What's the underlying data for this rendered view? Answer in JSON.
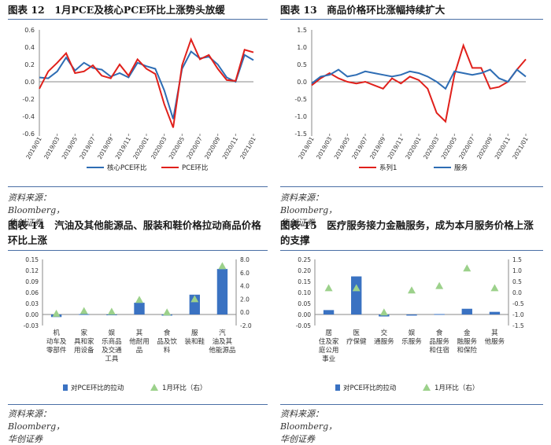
{
  "panels": [
    {
      "title": "图表 12　1月PCE及核心PCE环比上涨势头放缓",
      "source": "资料来源：Bloomberg，华创证券"
    },
    {
      "title": "图表 13　商品价格环比涨幅持续扩大",
      "source": "资料来源：Bloomberg，华创证券"
    },
    {
      "title": "图表 14　汽油及其他能源品、服装和鞋价格拉动商品价格环比上涨",
      "source": "资料来源：Bloomberg，华创证券"
    },
    {
      "title": "图表 15　医疗服务接力金融服务，成为本月服务价格上涨的支撑",
      "source": "资料来源：Bloomberg，华创证券"
    }
  ],
  "chart_data": [
    {
      "type": "line",
      "title": "图表 12　1月PCE及核心PCE环比上涨势头放缓",
      "x": [
        "2019/01",
        "2019/02",
        "2019/03",
        "2019/04",
        "2019/05",
        "2019/06",
        "2019/07",
        "2019/08",
        "2019/09",
        "2019/10",
        "2019/11",
        "2019/12",
        "2020/01",
        "2020/02",
        "2020/03",
        "2020/04",
        "2020/05",
        "2020/06",
        "2020/07",
        "2020/08",
        "2020/09",
        "2020/10",
        "2020/11",
        "2020/12",
        "2021/01"
      ],
      "x_ticks": [
        "2019/01",
        "2019/03",
        "2019/05",
        "2019/07",
        "2019/09",
        "2019/11",
        "2020/01",
        "2020/03",
        "2020/05",
        "2020/07",
        "2020/09",
        "2020/11",
        "2021/01"
      ],
      "ylim": [
        -0.6,
        0.6
      ],
      "yticks": [
        "0.6",
        "0.4",
        "0.2",
        "0.0",
        "-0.2",
        "-0.4",
        "-0.6"
      ],
      "series": [
        {
          "name": "核心PCE环比",
          "color": "#2e6db4",
          "values": [
            0.05,
            0.04,
            0.12,
            0.28,
            0.13,
            0.22,
            0.16,
            0.14,
            0.06,
            0.1,
            0.05,
            0.22,
            0.18,
            0.15,
            -0.1,
            -0.43,
            0.15,
            0.35,
            0.27,
            0.29,
            0.2,
            0.05,
            0.0,
            0.31,
            0.25
          ]
        },
        {
          "name": "PCE环比",
          "color": "#e0201b",
          "values": [
            -0.08,
            0.12,
            0.22,
            0.33,
            0.1,
            0.12,
            0.19,
            0.07,
            0.04,
            0.2,
            0.07,
            0.26,
            0.15,
            0.09,
            -0.26,
            -0.53,
            0.19,
            0.49,
            0.26,
            0.31,
            0.15,
            0.02,
            0.01,
            0.37,
            0.34
          ]
        }
      ]
    },
    {
      "type": "line",
      "title": "图表 13　商品价格环比涨幅持续扩大",
      "x": [
        "2019/01",
        "2019/02",
        "2019/03",
        "2019/04",
        "2019/05",
        "2019/06",
        "2019/07",
        "2019/08",
        "2019/09",
        "2019/10",
        "2019/11",
        "2019/12",
        "2020/01",
        "2020/02",
        "2020/03",
        "2020/04",
        "2020/05",
        "2020/06",
        "2020/07",
        "2020/08",
        "2020/09",
        "2020/10",
        "2020/11",
        "2020/12",
        "2021/01"
      ],
      "x_ticks": [
        "2019/01",
        "2019/03",
        "2019/05",
        "2019/07",
        "2019/09",
        "2019/11",
        "2020/01",
        "2020/03",
        "2020/05",
        "2020/07",
        "2020/09",
        "2020/11",
        "2021/01"
      ],
      "ylim": [
        -1.5,
        1.5
      ],
      "yticks": [
        "1.5",
        "1.0",
        "0.5",
        "0.0",
        "-0.5",
        "-1.0",
        "-1.5"
      ],
      "series": [
        {
          "name": "系列1",
          "color": "#e0201b",
          "values": [
            -0.1,
            0.1,
            0.25,
            0.1,
            0.0,
            -0.05,
            0.0,
            -0.1,
            -0.2,
            0.1,
            -0.05,
            0.15,
            0.05,
            -0.2,
            -0.9,
            -1.15,
            0.2,
            1.05,
            0.4,
            0.4,
            -0.2,
            -0.15,
            0.0,
            0.35,
            0.65
          ]
        },
        {
          "name": "服务",
          "color": "#2e6db4",
          "values": [
            -0.05,
            0.15,
            0.2,
            0.35,
            0.15,
            0.2,
            0.3,
            0.25,
            0.2,
            0.15,
            0.2,
            0.3,
            0.25,
            0.15,
            0.0,
            -0.2,
            0.3,
            0.25,
            0.2,
            0.25,
            0.35,
            0.1,
            0.0,
            0.35,
            0.15
          ]
        }
      ]
    },
    {
      "type": "bar",
      "title": "图表 14　汽油及其他能源品、服装和鞋价格拉动商品价格环比上涨",
      "categories": [
        "机动车及零部件",
        "家具和家用设备",
        "娱乐商品及交通工具",
        "其他耐用品",
        "食品及饮料",
        "服装和鞋",
        "汽油及其他能源品"
      ],
      "category_lines": [
        [
          "机",
          "动车及",
          "零部件"
        ],
        [
          "家",
          "具和家",
          "用设备"
        ],
        [
          "娱",
          "乐商品",
          "及交通",
          "工具"
        ],
        [
          "其",
          "他耐用",
          "品"
        ],
        [
          "食",
          "品及饮",
          "料"
        ],
        [
          "服",
          "装和鞋"
        ],
        [
          "汽",
          "油及其",
          "他能源品"
        ]
      ],
      "ylim": [
        -0.03,
        0.15
      ],
      "yticks": [
        "0.15",
        "0.12",
        "0.09",
        "0.06",
        "0.03",
        "0.00",
        "-0.03"
      ],
      "y2lim": [
        -2.0,
        8.0
      ],
      "y2ticks": [
        "8.0",
        "6.0",
        "4.0",
        "2.0",
        "0.0",
        "-2.0"
      ],
      "series": [
        {
          "name": "对PCE环比的拉动",
          "color": "#3a72c2",
          "values": [
            -0.007,
            0.001,
            0.0,
            0.032,
            -0.003,
            0.054,
            0.124
          ]
        },
        {
          "name": "1月环比（右）",
          "color": "#9cd18b",
          "values": [
            -0.2,
            0.2,
            0.1,
            1.9,
            0.0,
            2.0,
            7.0
          ]
        }
      ]
    },
    {
      "type": "bar",
      "title": "图表 15　医疗服务接力金融服务，成为本月服务价格上涨的支撑",
      "categories": [
        "居住及家庭公用事业",
        "医疗保健",
        "交通服务",
        "娱乐服务",
        "食品服务和住宿",
        "金融服务和保险",
        "其他服务"
      ],
      "category_lines": [
        [
          "居",
          "住及家",
          "庭公用",
          "事业"
        ],
        [
          "医",
          "疗保健"
        ],
        [
          "交",
          "通服务"
        ],
        [
          "娱",
          "乐服务"
        ],
        [
          "食",
          "品服务",
          "和住宿"
        ],
        [
          "金",
          "融服务",
          "和保险"
        ],
        [
          "其",
          "他服务"
        ]
      ],
      "ylim": [
        -0.05,
        0.25
      ],
      "yticks": [
        "0.25",
        "0.20",
        "0.15",
        "0.10",
        "0.05",
        "0.00",
        "-0.05"
      ],
      "y2lim": [
        -1.5,
        1.5
      ],
      "y2ticks": [
        "1.5",
        "1.0",
        "0.5",
        "0.0",
        "-0.5",
        "-1.0",
        "-1.5"
      ],
      "series": [
        {
          "name": "对PCE环比的拉动",
          "color": "#3a72c2",
          "values": [
            0.02,
            0.173,
            -0.009,
            -0.005,
            0.002,
            0.026,
            0.012
          ]
        },
        {
          "name": "1月环比（右）",
          "color": "#9cd18b",
          "values": [
            0.2,
            0.2,
            -0.9,
            0.1,
            0.3,
            1.1,
            0.2
          ]
        }
      ]
    }
  ]
}
